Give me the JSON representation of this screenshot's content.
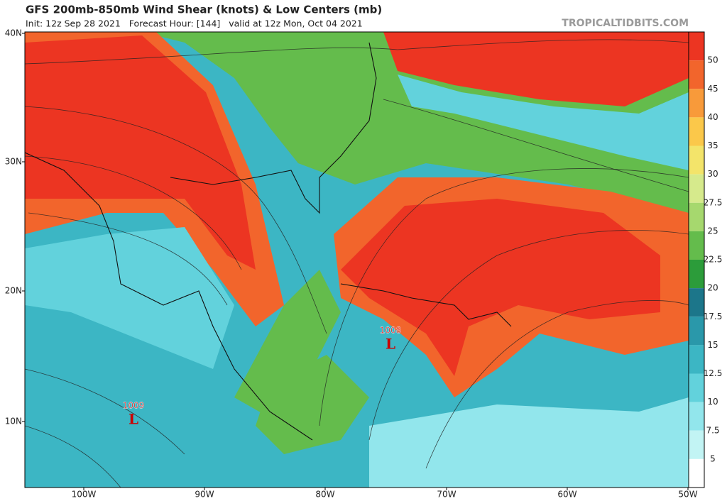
{
  "header": {
    "title": "GFS 200mb-850mb Wind Shear (knots) & Low Centers (mb)",
    "subtitle": "Init: 12z Sep 28 2021   Forecast Hour: [144]   valid at 12z Mon, Oct 04 2021",
    "credit": "TROPICALTIDBITS.COM"
  },
  "map": {
    "lat_labels": [
      "40N",
      "30N",
      "20N",
      "10N"
    ],
    "lon_labels": [
      "100W",
      "90W",
      "80W",
      "70W",
      "60W",
      "50W"
    ],
    "lows": [
      {
        "pressure": 1009,
        "symbol": "L"
      },
      {
        "pressure": 1008,
        "symbol": "L"
      }
    ]
  },
  "colorbar": {
    "levels": [
      50,
      45,
      40,
      35,
      30,
      27.5,
      25,
      22.5,
      20,
      17.5,
      15,
      12.5,
      10,
      7.5,
      5
    ],
    "colors": [
      "#ec3522",
      "#f2652c",
      "#f89a3a",
      "#fbc84a",
      "#f3e46a",
      "#d6ea8c",
      "#a6d86e",
      "#64bc4c",
      "#2c9c3a",
      "#1c768a",
      "#2a98aa",
      "#3cb6c4",
      "#62d2dc",
      "#92e6ec",
      "#c2f4f4",
      "#ffffff"
    ]
  }
}
